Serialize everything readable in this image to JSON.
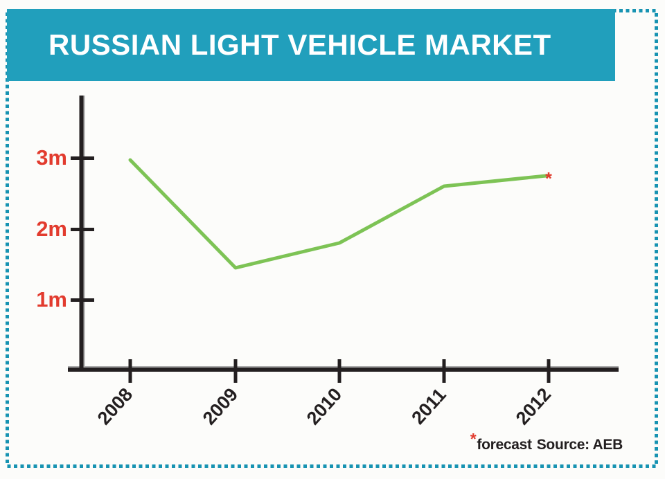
{
  "page": {
    "background": "#fcfcfa",
    "border_color": "#1793b2"
  },
  "banner": {
    "title": "RUSSIAN LIGHT VEHICLE MARKET",
    "background": "#219fbc",
    "text_color": "#ffffff"
  },
  "chart_data": {
    "type": "line",
    "title": "RUSSIAN LIGHT VEHICLE MARKET",
    "categories": [
      "2008",
      "2009",
      "2010",
      "2011",
      "2012"
    ],
    "values": [
      2.97,
      1.45,
      1.8,
      2.6,
      2.75
    ],
    "value_unit": "m",
    "y_tick_labels": [
      "3m",
      "2m",
      "1m"
    ],
    "y_tick_values": [
      3,
      2,
      1
    ],
    "ylim": [
      0,
      3.9
    ],
    "grid": false,
    "legend": false,
    "line_color": "#7dc355",
    "axis_color": "#231f20",
    "y_tick_label_color": "#e23b2e",
    "x_tick_label_color": "#231f20",
    "forecast_marker": "*",
    "forecast_index": 4,
    "marker_color": "#e23b2e"
  },
  "footer": {
    "asterisk": "*",
    "note": "forecast",
    "source": "Source: AEB",
    "asterisk_color": "#e23b2e"
  }
}
